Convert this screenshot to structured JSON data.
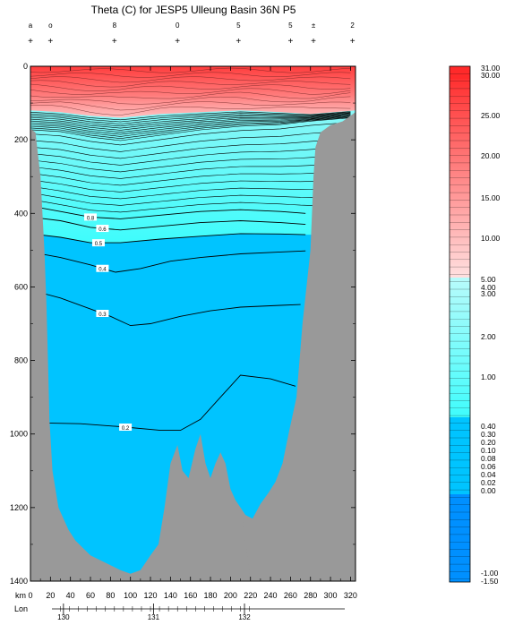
{
  "chart_data": {
    "type": "heatmap",
    "title": "Theta (C) for JESP5 Ulleung Basin 36N P5",
    "x_axis": {
      "label": "km",
      "range": [
        0,
        325
      ],
      "ticks": [
        "0",
        "20",
        "40",
        "60",
        "80",
        "100",
        "120",
        "140",
        "160",
        "180",
        "200",
        "220",
        "240",
        "260",
        "280",
        "300",
        "320"
      ]
    },
    "y_axis": {
      "label": "",
      "range": [
        0,
        1400
      ],
      "reversed": true,
      "ticks": [
        "0",
        "200",
        "400",
        "600",
        "800",
        "1000",
        "1200",
        "1400"
      ]
    },
    "lon_axis": {
      "label": "Lon",
      "ticks": [
        {
          "label": "130",
          "km": 33
        },
        {
          "label": "131",
          "km": 123
        },
        {
          "label": "132",
          "km": 214
        }
      ]
    },
    "stations": [
      {
        "label": "a",
        "km": 0
      },
      {
        "label": "o",
        "km": 20
      },
      {
        "label": "8",
        "km": 84
      },
      {
        "label": "0",
        "km": 147
      },
      {
        "label": "5",
        "km": 208
      },
      {
        "label": "5",
        "km": 260
      },
      {
        "label": "±",
        "km": 283
      },
      {
        "label": "2",
        "km": 322
      }
    ],
    "colorbar": {
      "labels": [
        "31.00",
        "30.00",
        "25.00",
        "20.00",
        "15.00",
        "10.00",
        "5.00",
        "4.00",
        "3.00",
        "2.00",
        "1.00",
        "0.40",
        "0.30",
        "0.20",
        "0.10",
        "0.08",
        "0.06",
        "0.04",
        "0.02",
        "0.00",
        "-1.00",
        "-1.50"
      ],
      "colors": {
        "warm": "#ff2a2a",
        "pale": "#ffd0d0",
        "cyan": "#3ffcfc",
        "blue": "#00c4ff",
        "deep": "#0090ff",
        "land": "#999999"
      }
    },
    "contour_labels": [
      "0.8",
      "0.6",
      "0.5",
      "0.4",
      "0.3",
      "0.2"
    ],
    "contours": [
      {
        "value": 0.8,
        "points": [
          [
            0,
            380
          ],
          [
            30,
            395
          ],
          [
            60,
            410
          ],
          [
            90,
            415
          ],
          [
            130,
            405
          ],
          [
            170,
            395
          ],
          [
            210,
            390
          ],
          [
            250,
            395
          ],
          [
            275,
            400
          ]
        ]
      },
      {
        "value": 0.6,
        "points": [
          [
            0,
            410
          ],
          [
            30,
            420
          ],
          [
            60,
            438
          ],
          [
            90,
            445
          ],
          [
            130,
            435
          ],
          [
            170,
            425
          ],
          [
            210,
            420
          ],
          [
            250,
            425
          ],
          [
            275,
            430
          ]
        ]
      },
      {
        "value": 0.5,
        "points": [
          [
            0,
            455
          ],
          [
            30,
            465
          ],
          [
            60,
            480
          ],
          [
            90,
            480
          ],
          [
            130,
            470
          ],
          [
            170,
            462
          ],
          [
            210,
            455
          ],
          [
            250,
            456
          ],
          [
            275,
            458
          ]
        ]
      },
      {
        "value": 0.4,
        "points": [
          [
            0,
            505
          ],
          [
            30,
            520
          ],
          [
            60,
            540
          ],
          [
            85,
            560
          ],
          [
            110,
            550
          ],
          [
            140,
            530
          ],
          [
            170,
            520
          ],
          [
            210,
            510
          ],
          [
            250,
            505
          ],
          [
            275,
            502
          ]
        ]
      },
      {
        "value": 0.3,
        "points": [
          [
            2,
            610
          ],
          [
            30,
            630
          ],
          [
            60,
            660
          ],
          [
            80,
            680
          ],
          [
            100,
            705
          ],
          [
            120,
            700
          ],
          [
            150,
            680
          ],
          [
            180,
            665
          ],
          [
            210,
            655
          ],
          [
            250,
            650
          ],
          [
            270,
            648
          ]
        ]
      },
      {
        "value": 0.2,
        "points": [
          [
            15,
            970
          ],
          [
            50,
            972
          ],
          [
            90,
            980
          ],
          [
            130,
            990
          ],
          [
            150,
            990
          ],
          [
            170,
            960
          ],
          [
            190,
            900
          ],
          [
            210,
            840
          ],
          [
            240,
            850
          ],
          [
            265,
            870
          ]
        ]
      }
    ],
    "land_left": [
      [
        0,
        170
      ],
      [
        5,
        180
      ],
      [
        10,
        300
      ],
      [
        14,
        500
      ],
      [
        16,
        650
      ],
      [
        18,
        850
      ],
      [
        19,
        960
      ],
      [
        22,
        1100
      ],
      [
        28,
        1200
      ],
      [
        33,
        1230
      ],
      [
        38,
        1260
      ],
      [
        45,
        1290
      ],
      [
        60,
        1330
      ],
      [
        75,
        1350
      ],
      [
        90,
        1370
      ],
      [
        100,
        1380
      ],
      [
        110,
        1370
      ],
      [
        120,
        1330
      ],
      [
        128,
        1300
      ],
      [
        134,
        1200
      ],
      [
        140,
        1080
      ],
      [
        147,
        1030
      ],
      [
        152,
        1100
      ],
      [
        158,
        1120
      ],
      [
        165,
        1040
      ],
      [
        170,
        1000
      ],
      [
        175,
        1080
      ],
      [
        180,
        1120
      ],
      [
        185,
        1080
      ],
      [
        190,
        1050
      ],
      [
        195,
        1080
      ],
      [
        200,
        1150
      ],
      [
        205,
        1180
      ],
      [
        210,
        1200
      ],
      [
        215,
        1220
      ],
      [
        222,
        1230
      ],
      [
        230,
        1190
      ],
      [
        238,
        1160
      ],
      [
        245,
        1130
      ],
      [
        252,
        1080
      ],
      [
        258,
        1000
      ],
      [
        266,
        900
      ],
      [
        272,
        700
      ],
      [
        280,
        500
      ],
      [
        283,
        300
      ],
      [
        285,
        220
      ],
      [
        290,
        180
      ],
      [
        300,
        160
      ],
      [
        312,
        150
      ],
      [
        325,
        125
      ]
    ],
    "land_right": [
      [
        212,
        1230
      ],
      [
        220,
        1250
      ]
    ]
  }
}
